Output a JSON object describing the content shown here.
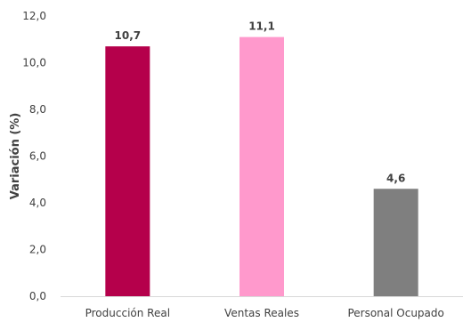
{
  "chart_data": {
    "type": "bar",
    "title": "",
    "xlabel": "",
    "ylabel": "Variación (%)",
    "categories": [
      "Producción Real",
      "Ventas Reales",
      "Personal Ocupado"
    ],
    "values": [
      10.7,
      11.1,
      4.6
    ],
    "data_labels": [
      "10,7",
      "11,1",
      "4,6"
    ],
    "ylim": [
      0,
      12
    ],
    "y_ticks": [
      0,
      2,
      4,
      6,
      8,
      10,
      12
    ],
    "y_tick_labels": [
      "0,0",
      "2,0",
      "4,0",
      "6,0",
      "8,0",
      "10,0",
      "12,0"
    ],
    "grid": false,
    "colors": [
      "#B5004B",
      "#FF99CC",
      "#7F7F7F"
    ],
    "axis_color": "#D9D9D9",
    "text_color": "#404040"
  }
}
